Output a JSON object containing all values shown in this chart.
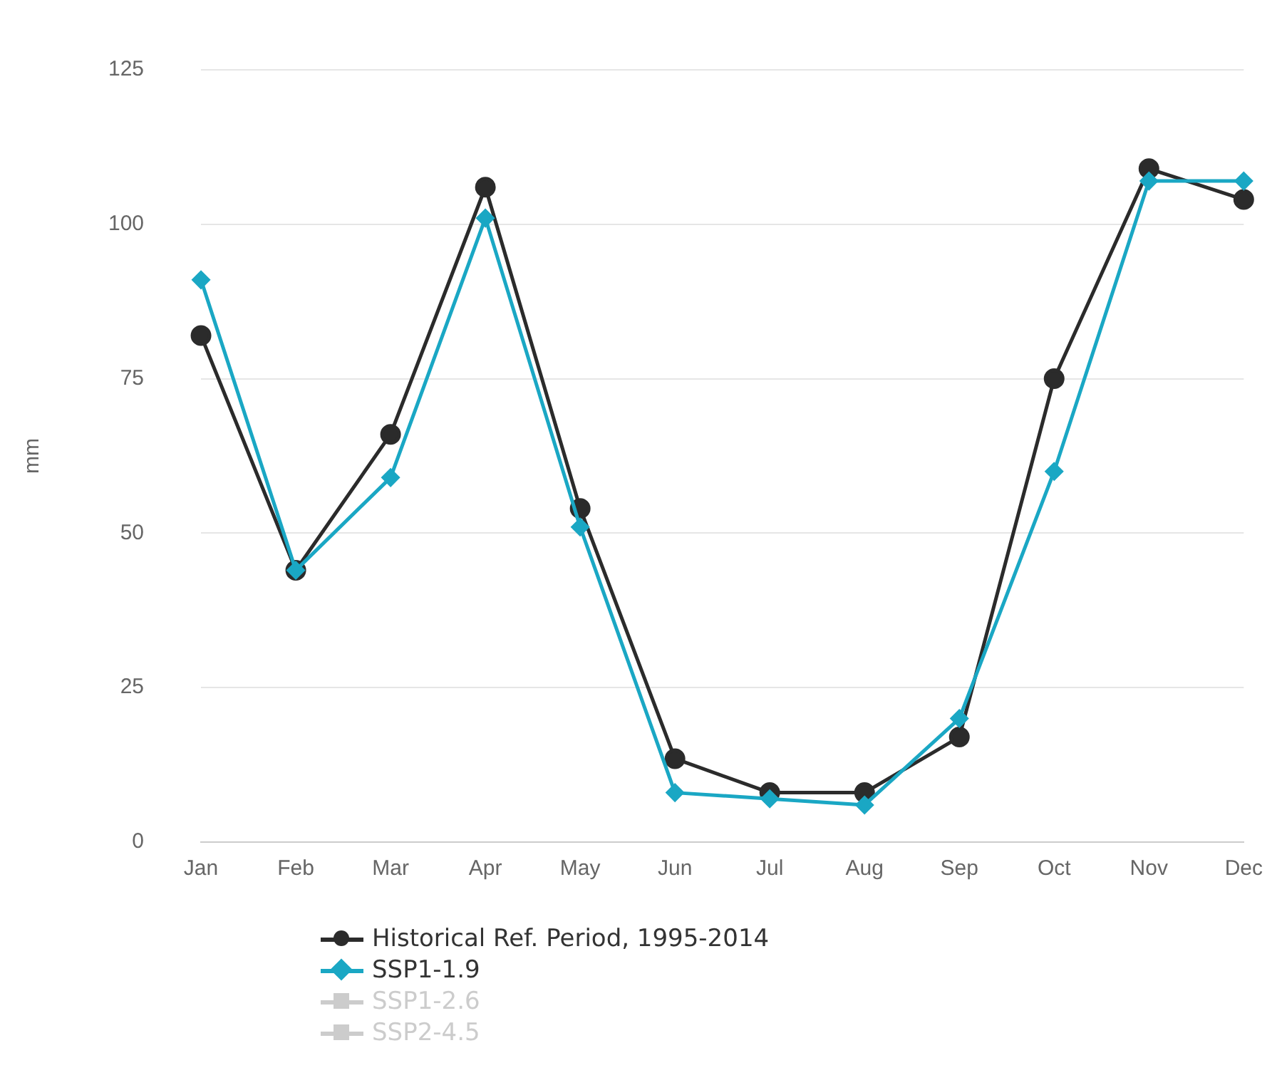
{
  "chart_data": {
    "type": "line",
    "ylabel": "mm",
    "categories": [
      "Jan",
      "Feb",
      "Mar",
      "Apr",
      "May",
      "Jun",
      "Jul",
      "Aug",
      "Sep",
      "Oct",
      "Nov",
      "Dec"
    ],
    "series": [
      {
        "name": "Historical Ref. Period, 1995-2014",
        "color": "#2b2b2b",
        "marker": "circle",
        "values": [
          82,
          44,
          66,
          106,
          54,
          13.5,
          8,
          8,
          17,
          75,
          109,
          104
        ]
      },
      {
        "name": "SSP1-1.9",
        "color": "#1aa7c4",
        "marker": "diamond",
        "values": [
          91,
          44,
          59,
          101,
          51,
          8,
          7,
          6,
          20,
          60,
          107,
          107
        ]
      },
      {
        "name": "SSP1-2.6",
        "color": "#cccccc",
        "marker": "square",
        "values": [
          null,
          null,
          null,
          null,
          null,
          null,
          null,
          null,
          null,
          null,
          null,
          null
        ]
      },
      {
        "name": "SSP2-4.5",
        "color": "#cccccc",
        "marker": "triangle",
        "values": [
          null,
          null,
          null,
          null,
          null,
          null,
          null,
          null,
          null,
          null,
          null,
          null
        ]
      }
    ],
    "ylim": [
      0,
      125
    ],
    "yticks": [
      0,
      25,
      50,
      75,
      100,
      125
    ],
    "grid": "y",
    "legend": "bottom"
  }
}
